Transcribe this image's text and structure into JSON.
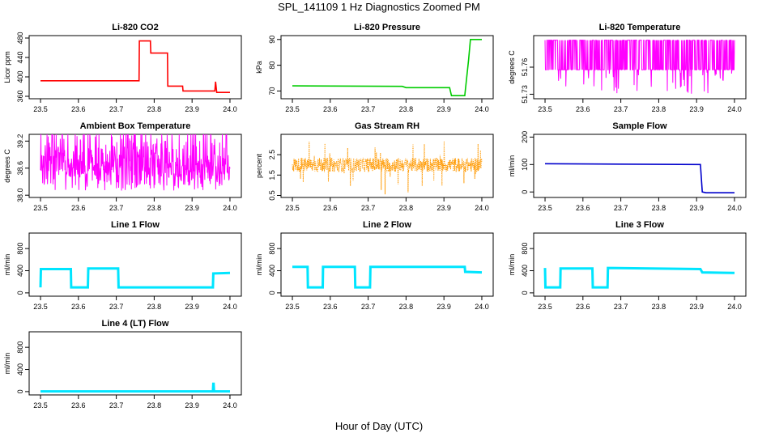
{
  "figure": {
    "title": "SPL_141109  1 Hz Diagnostics Zoomed PM",
    "xlabel": "Hour of Day (UTC)"
  },
  "chart_data": [
    {
      "type": "line",
      "title": "Li-820 CO2",
      "ylabel": "Licor ppm",
      "color": "#ff0000",
      "xlim": [
        23.47,
        24.03
      ],
      "ylim": [
        355,
        485
      ],
      "xticks": [
        "23.5",
        "23.6",
        "23.7",
        "23.8",
        "23.9",
        "24.0"
      ],
      "xtick_values": [
        23.5,
        23.6,
        23.7,
        23.8,
        23.9,
        24.0
      ],
      "yticks": [
        "360",
        "400",
        "440",
        "480"
      ],
      "ytick_values": [
        360,
        400,
        440,
        480
      ],
      "series": [
        {
          "x": [
            23.5,
            23.76,
            23.761,
            23.79,
            23.791,
            23.835,
            23.836,
            23.875,
            23.876,
            23.96,
            23.962,
            23.965,
            24.0
          ],
          "y": [
            392,
            392,
            474,
            474,
            449,
            449,
            381,
            381,
            371,
            371,
            390,
            368,
            368
          ]
        }
      ]
    },
    {
      "type": "line",
      "title": "Li-820 Pressure",
      "ylabel": "kPa",
      "color": "#00cc00",
      "xlim": [
        23.47,
        24.03
      ],
      "ylim": [
        67,
        91.5
      ],
      "xticks": [
        "23.5",
        "23.6",
        "23.7",
        "23.8",
        "23.9",
        "24.0"
      ],
      "xtick_values": [
        23.5,
        23.6,
        23.7,
        23.8,
        23.9,
        24.0
      ],
      "yticks": [
        "70",
        "80",
        "90"
      ],
      "ytick_values": [
        70,
        80,
        90
      ],
      "series": [
        {
          "x": [
            23.5,
            23.79,
            23.8,
            23.915,
            23.92,
            23.955,
            23.965,
            23.97,
            24.0
          ],
          "y": [
            72.0,
            71.8,
            71.3,
            71.3,
            68.2,
            68.2,
            82.0,
            90.0,
            90.0
          ]
        }
      ]
    },
    {
      "type": "line",
      "title": "Li-820 Temperature",
      "ylabel": "degrees C",
      "color": "#ff00ff",
      "xlim": [
        23.47,
        24.03
      ],
      "ylim": [
        51.725,
        51.795
      ],
      "xticks": [
        "23.5",
        "23.6",
        "23.7",
        "23.8",
        "23.9",
        "24.0"
      ],
      "xtick_values": [
        23.5,
        23.6,
        23.7,
        23.8,
        23.9,
        24.0
      ],
      "yticks": [
        "51.73",
        "51.76"
      ],
      "ytick_values": [
        51.73,
        51.76
      ],
      "noise": {
        "low": 51.757,
        "high": 51.79,
        "spike_low": 51.73,
        "spike_prob": 0.08
      },
      "series": [
        {
          "x": [
            23.5,
            24.0
          ],
          "y": [
            51.757,
            51.79
          ]
        }
      ]
    },
    {
      "type": "line",
      "title": "Ambient Box Temperature",
      "ylabel": "degrees C",
      "color": "#ff00ff",
      "xlim": [
        23.47,
        24.03
      ],
      "ylim": [
        37.95,
        39.35
      ],
      "xticks": [
        "23.5",
        "23.6",
        "23.7",
        "23.8",
        "23.9",
        "24.0"
      ],
      "xtick_values": [
        23.5,
        23.6,
        23.7,
        23.8,
        23.9,
        24.0
      ],
      "yticks": [
        "38.0",
        "38.6",
        "39.2"
      ],
      "ytick_values": [
        38.0,
        38.6,
        39.2
      ],
      "noise": {
        "low": 38.1,
        "high": 39.25,
        "spike_low": 37.97,
        "spike_prob": 0.04
      },
      "series": [
        {
          "x": [
            23.5,
            24.0
          ],
          "y": [
            38.1,
            39.25
          ]
        }
      ]
    },
    {
      "type": "scatter",
      "title": "Gas Stream RH",
      "ylabel": "percent",
      "color": "#ff9900",
      "xlim": [
        23.47,
        24.03
      ],
      "ylim": [
        0.4,
        3.5
      ],
      "xticks": [
        "23.5",
        "23.6",
        "23.7",
        "23.8",
        "23.9",
        "24.0"
      ],
      "xtick_values": [
        23.5,
        23.6,
        23.7,
        23.8,
        23.9,
        24.0
      ],
      "yticks": [
        "0.5",
        "1.5",
        "2.5"
      ],
      "ytick_values": [
        0.5,
        1.5,
        2.5
      ],
      "noise": {
        "center": 2.0,
        "spread": 0.35,
        "spike_high": 3.2,
        "spike_low": 0.55
      },
      "series": [
        {
          "x": [
            23.5,
            24.0
          ],
          "y": [
            2.0,
            2.0
          ]
        }
      ]
    },
    {
      "type": "line",
      "title": "Sample Flow",
      "ylabel": "ml/min",
      "color": "#0000cc",
      "xlim": [
        23.47,
        24.03
      ],
      "ylim": [
        -20,
        210
      ],
      "xticks": [
        "23.5",
        "23.6",
        "23.7",
        "23.8",
        "23.9",
        "24.0"
      ],
      "xtick_values": [
        23.5,
        23.6,
        23.7,
        23.8,
        23.9,
        24.0
      ],
      "yticks": [
        "0",
        "100",
        "200"
      ],
      "ytick_values": [
        0,
        100,
        200
      ],
      "series": [
        {
          "x": [
            23.5,
            23.91,
            23.915,
            23.925,
            24.0
          ],
          "y": [
            103,
            100,
            0,
            -3,
            -3
          ]
        }
      ]
    },
    {
      "type": "line",
      "title": "Line 1 Flow",
      "ylabel": "ml/min",
      "color": "#00e5ff",
      "xlim": [
        23.47,
        24.03
      ],
      "ylim": [
        -60,
        1080
      ],
      "xticks": [
        "23.5",
        "23.6",
        "23.7",
        "23.8",
        "23.9",
        "24.0"
      ],
      "xtick_values": [
        23.5,
        23.6,
        23.7,
        23.8,
        23.9,
        24.0
      ],
      "yticks": [
        "0",
        "400",
        "800"
      ],
      "ytick_values": [
        0,
        400,
        800
      ],
      "series": [
        {
          "x": [
            23.5,
            23.501,
            23.58,
            23.581,
            23.625,
            23.626,
            23.705,
            23.706,
            23.955,
            23.956,
            24.0
          ],
          "y": [
            100,
            430,
            430,
            100,
            100,
            440,
            440,
            100,
            100,
            350,
            360
          ]
        }
      ]
    },
    {
      "type": "line",
      "title": "Line 2 Flow",
      "ylabel": "ml/min",
      "color": "#00e5ff",
      "xlim": [
        23.47,
        24.03
      ],
      "ylim": [
        -60,
        1080
      ],
      "xticks": [
        "23.5",
        "23.6",
        "23.7",
        "23.8",
        "23.9",
        "24.0"
      ],
      "xtick_values": [
        23.5,
        23.6,
        23.7,
        23.8,
        23.9,
        24.0
      ],
      "yticks": [
        "0",
        "400",
        "800"
      ],
      "ytick_values": [
        0,
        400,
        800
      ],
      "series": [
        {
          "x": [
            23.5,
            23.54,
            23.541,
            23.58,
            23.581,
            23.665,
            23.666,
            23.705,
            23.706,
            23.955,
            23.956,
            24.0
          ],
          "y": [
            470,
            470,
            100,
            100,
            470,
            470,
            100,
            100,
            470,
            470,
            380,
            370
          ]
        }
      ]
    },
    {
      "type": "line",
      "title": "Line 3 Flow",
      "ylabel": "ml/min",
      "color": "#00e5ff",
      "xlim": [
        23.47,
        24.03
      ],
      "ylim": [
        -60,
        1080
      ],
      "xticks": [
        "23.5",
        "23.6",
        "23.7",
        "23.8",
        "23.9",
        "24.0"
      ],
      "xtick_values": [
        23.5,
        23.6,
        23.7,
        23.8,
        23.9,
        24.0
      ],
      "yticks": [
        "0",
        "400",
        "800"
      ],
      "ytick_values": [
        0,
        400,
        800
      ],
      "series": [
        {
          "x": [
            23.5,
            23.501,
            23.54,
            23.541,
            23.625,
            23.626,
            23.665,
            23.666,
            23.91,
            23.915,
            24.0
          ],
          "y": [
            450,
            100,
            100,
            440,
            440,
            100,
            100,
            450,
            430,
            370,
            360
          ]
        }
      ]
    },
    {
      "type": "line",
      "title": "Line 4 (LT) Flow",
      "ylabel": "ml/min",
      "color": "#00e5ff",
      "xlim": [
        23.47,
        24.03
      ],
      "ylim": [
        -60,
        1080
      ],
      "xticks": [
        "23.5",
        "23.6",
        "23.7",
        "23.8",
        "23.9",
        "24.0"
      ],
      "xtick_values": [
        23.5,
        23.6,
        23.7,
        23.8,
        23.9,
        24.0
      ],
      "yticks": [
        "0",
        "400",
        "800"
      ],
      "ytick_values": [
        0,
        400,
        800
      ],
      "series": [
        {
          "x": [
            23.5,
            23.955,
            23.956,
            23.957,
            23.958,
            24.0
          ],
          "y": [
            5,
            5,
            140,
            140,
            5,
            5
          ]
        }
      ]
    }
  ]
}
